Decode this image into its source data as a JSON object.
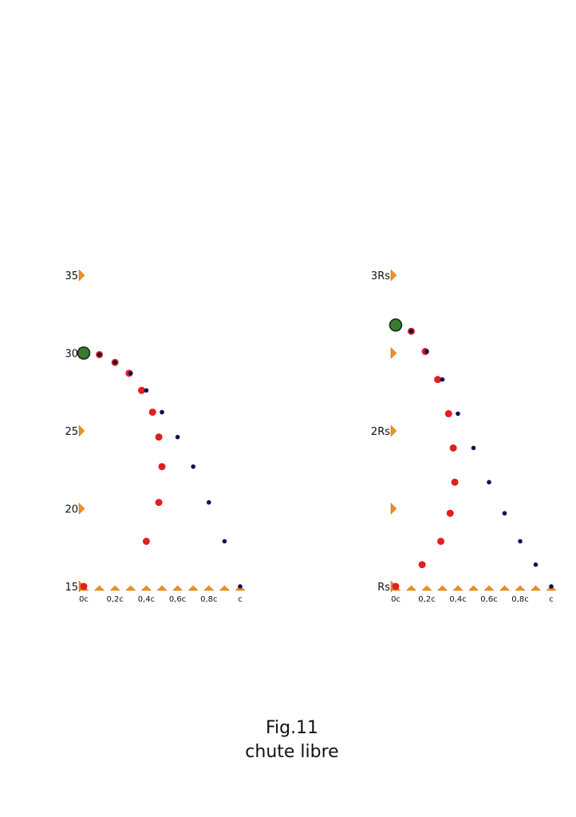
{
  "caption": {
    "figure": "Fig.11",
    "title": "chute libre"
  },
  "colors": {
    "tick_marker": "#f0901e",
    "red_series": "#e0201e",
    "blue_series": "#101050",
    "start_point": "#3a7a30"
  },
  "chart_data": [
    {
      "type": "scatter",
      "ylim": [
        15,
        35
      ],
      "xlim": [
        0,
        1
      ],
      "grid": false,
      "y_ticks": [
        {
          "value": 15,
          "label": "15"
        },
        {
          "value": 20,
          "label": "20"
        },
        {
          "value": 25,
          "label": "25"
        },
        {
          "value": 30,
          "label": "30"
        },
        {
          "value": 35,
          "label": "35"
        }
      ],
      "x_ticks": [
        {
          "value": 0,
          "label": "0c"
        },
        {
          "value": 0.1,
          "label": ""
        },
        {
          "value": 0.2,
          "label": "0,2c"
        },
        {
          "value": 0.3,
          "label": ""
        },
        {
          "value": 0.4,
          "label": "0,4c"
        },
        {
          "value": 0.5,
          "label": ""
        },
        {
          "value": 0.6,
          "label": "0,6c"
        },
        {
          "value": 0.7,
          "label": ""
        },
        {
          "value": 0.8,
          "label": "0,8c"
        },
        {
          "value": 0.9,
          "label": ""
        },
        {
          "value": 1.0,
          "label": "c"
        }
      ],
      "start_point": {
        "x": 0,
        "y": 30
      },
      "series": [
        {
          "color": "blue",
          "x": [
            0.1,
            0.2,
            0.3,
            0.4,
            0.5,
            0.6,
            0.7,
            0.8,
            0.9,
            1.0
          ],
          "y": [
            29.9,
            29.4,
            28.7,
            27.6,
            26.2,
            24.6,
            22.7,
            20.4,
            17.9,
            15.0
          ]
        },
        {
          "color": "red",
          "x": [
            0.1,
            0.2,
            0.29,
            0.37,
            0.44,
            0.48,
            0.5,
            0.48,
            0.4,
            0.0
          ],
          "y": [
            29.9,
            29.4,
            28.7,
            27.6,
            26.2,
            24.6,
            22.7,
            20.4,
            17.9,
            15.0
          ]
        }
      ]
    },
    {
      "type": "scatter",
      "ylim": [
        1,
        3
      ],
      "xlim": [
        0,
        1
      ],
      "grid": false,
      "y_ticks": [
        {
          "value": 1,
          "label": "Rs"
        },
        {
          "value": 1.5,
          "label": ""
        },
        {
          "value": 2,
          "label": "2Rs"
        },
        {
          "value": 2.5,
          "label": ""
        },
        {
          "value": 3,
          "label": "3Rs"
        }
      ],
      "x_ticks": [
        {
          "value": 0,
          "label": "0c"
        },
        {
          "value": 0.1,
          "label": ""
        },
        {
          "value": 0.2,
          "label": "0,2c"
        },
        {
          "value": 0.3,
          "label": ""
        },
        {
          "value": 0.4,
          "label": "0,4c"
        },
        {
          "value": 0.5,
          "label": ""
        },
        {
          "value": 0.6,
          "label": "0,6c"
        },
        {
          "value": 0.7,
          "label": ""
        },
        {
          "value": 0.8,
          "label": "0,8c"
        },
        {
          "value": 0.9,
          "label": ""
        },
        {
          "value": 1.0,
          "label": "c"
        }
      ],
      "start_point": {
        "x": 0,
        "y": 2.68
      },
      "series": [
        {
          "color": "blue",
          "x": [
            0.1,
            0.2,
            0.3,
            0.4,
            0.5,
            0.6,
            0.7,
            0.8,
            0.9,
            1.0
          ],
          "y": [
            2.64,
            2.51,
            2.33,
            2.11,
            1.89,
            1.67,
            1.47,
            1.29,
            1.14,
            1.0
          ]
        },
        {
          "color": "red",
          "x": [
            0.1,
            0.19,
            0.27,
            0.34,
            0.37,
            0.38,
            0.35,
            0.29,
            0.17,
            0.0
          ],
          "y": [
            2.64,
            2.51,
            2.33,
            2.11,
            1.89,
            1.67,
            1.47,
            1.29,
            1.14,
            1.0
          ]
        }
      ]
    }
  ]
}
